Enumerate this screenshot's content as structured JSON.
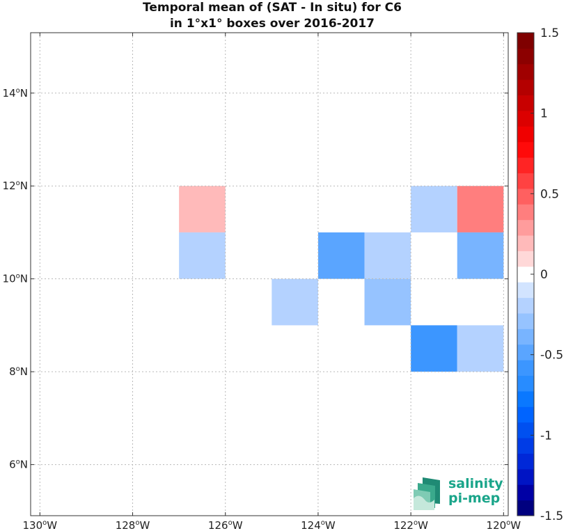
{
  "chart_data": {
    "type": "heatmap",
    "title": [
      "Temporal mean of (SAT - In situ) for C6",
      "in 1°x1° boxes over 2016-2017"
    ],
    "x_ticks": [
      {
        "value": -130,
        "label": "130",
        "suffix": "W"
      },
      {
        "value": -128,
        "label": "128",
        "suffix": "W"
      },
      {
        "value": -126,
        "label": "126",
        "suffix": "W"
      },
      {
        "value": -124,
        "label": "124",
        "suffix": "W"
      },
      {
        "value": -122,
        "label": "122",
        "suffix": "W"
      },
      {
        "value": -120,
        "label": "120",
        "suffix": "W"
      }
    ],
    "y_ticks": [
      {
        "value": 6,
        "label": "6",
        "suffix": "N"
      },
      {
        "value": 8,
        "label": "8",
        "suffix": "N"
      },
      {
        "value": 10,
        "label": "10",
        "suffix": "N"
      },
      {
        "value": 12,
        "label": "12",
        "suffix": "N"
      },
      {
        "value": 14,
        "label": "14",
        "suffix": "N"
      }
    ],
    "degree_symbol": "o",
    "xlim": [
      -130.2,
      -119.9
    ],
    "ylim": [
      4.9,
      15.3
    ],
    "grid": true,
    "cells": [
      {
        "lon": -127,
        "lat": 11,
        "value": 0.15
      },
      {
        "lon": -127,
        "lat": 10,
        "value": -0.15
      },
      {
        "lon": -124,
        "lat": 10,
        "value": -0.5
      },
      {
        "lon": -123,
        "lat": 10,
        "value": -0.15
      },
      {
        "lon": -125,
        "lat": 9,
        "value": -0.15
      },
      {
        "lon": -123,
        "lat": 9,
        "value": -0.25
      },
      {
        "lon": -122,
        "lat": 11,
        "value": -0.15
      },
      {
        "lon": -121,
        "lat": 11,
        "value": 0.35
      },
      {
        "lon": -121,
        "lat": 10,
        "value": -0.35
      },
      {
        "lon": -122,
        "lat": 8,
        "value": -0.6
      },
      {
        "lon": -121,
        "lat": 8,
        "value": -0.15
      }
    ],
    "colorbar": {
      "min": -1.5,
      "max": 1.5,
      "ticks": [
        {
          "value": 1.5,
          "label": "1.5"
        },
        {
          "value": 1,
          "label": "1"
        },
        {
          "value": 0.5,
          "label": "0.5"
        },
        {
          "value": 0,
          "label": "0"
        },
        {
          "value": -0.5,
          "label": "-0.5"
        },
        {
          "value": -1,
          "label": "-1"
        },
        {
          "value": -1.5,
          "label": "-1.5"
        }
      ],
      "colors": [
        "#00007f",
        "#0000a5",
        "#0014c4",
        "#0028d8",
        "#003ce6",
        "#0050f0",
        "#0064ff",
        "#0a78ff",
        "#288cff",
        "#3c96ff",
        "#5aa5ff",
        "#78b4ff",
        "#96c3ff",
        "#b4d2ff",
        "#d2e4ff",
        "#ffffff",
        "#ffd8d8",
        "#ffbaba",
        "#ff9c9c",
        "#ff7e7e",
        "#ff6060",
        "#ff4242",
        "#ff2424",
        "#ff0a0a",
        "#f00000",
        "#dc0000",
        "#c80000",
        "#b40000",
        "#a00000",
        "#8c0000",
        "#7f0000"
      ]
    }
  },
  "logo": {
    "line1": "salinity",
    "line2": "pi-mep"
  }
}
